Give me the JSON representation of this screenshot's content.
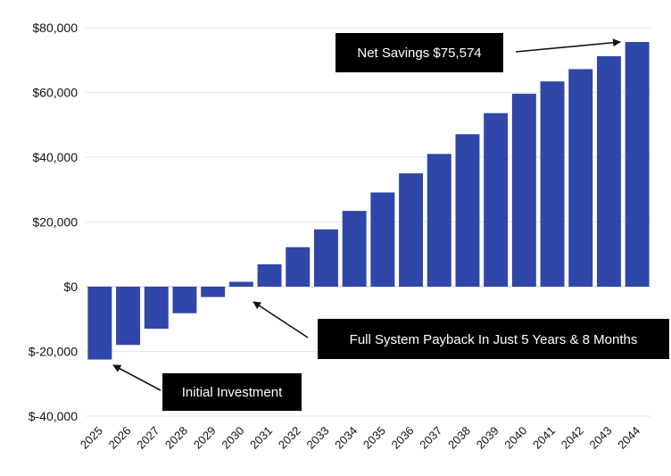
{
  "chart_data": {
    "type": "bar",
    "categories": [
      "2025",
      "2026",
      "2027",
      "2028",
      "2029",
      "2030",
      "2031",
      "2032",
      "2033",
      "2034",
      "2035",
      "2036",
      "2037",
      "2038",
      "2039",
      "2040",
      "2041",
      "2042",
      "2043",
      "2044"
    ],
    "values": [
      -22500,
      -18000,
      -13000,
      -8200,
      -3200,
      1500,
      6900,
      12200,
      17700,
      23400,
      29100,
      35000,
      41000,
      47100,
      53600,
      59600,
      63400,
      67200,
      71200,
      75574
    ],
    "ylim": [
      -40000,
      80000
    ],
    "yticks": [
      -40000,
      -20000,
      0,
      20000,
      40000,
      60000,
      80000
    ],
    "ytick_labels": [
      "$-40,000",
      "$-20,000",
      "$0",
      "$20,000",
      "$40,000",
      "$60,000",
      "$80,000"
    ],
    "grid": true,
    "bar_color": "#2f47a8",
    "annotations": {
      "net_savings": "Net Savings $75,574",
      "payback": "Full System Payback In Just 5 Years & 8 Months",
      "initial": "Initial Investment"
    }
  }
}
